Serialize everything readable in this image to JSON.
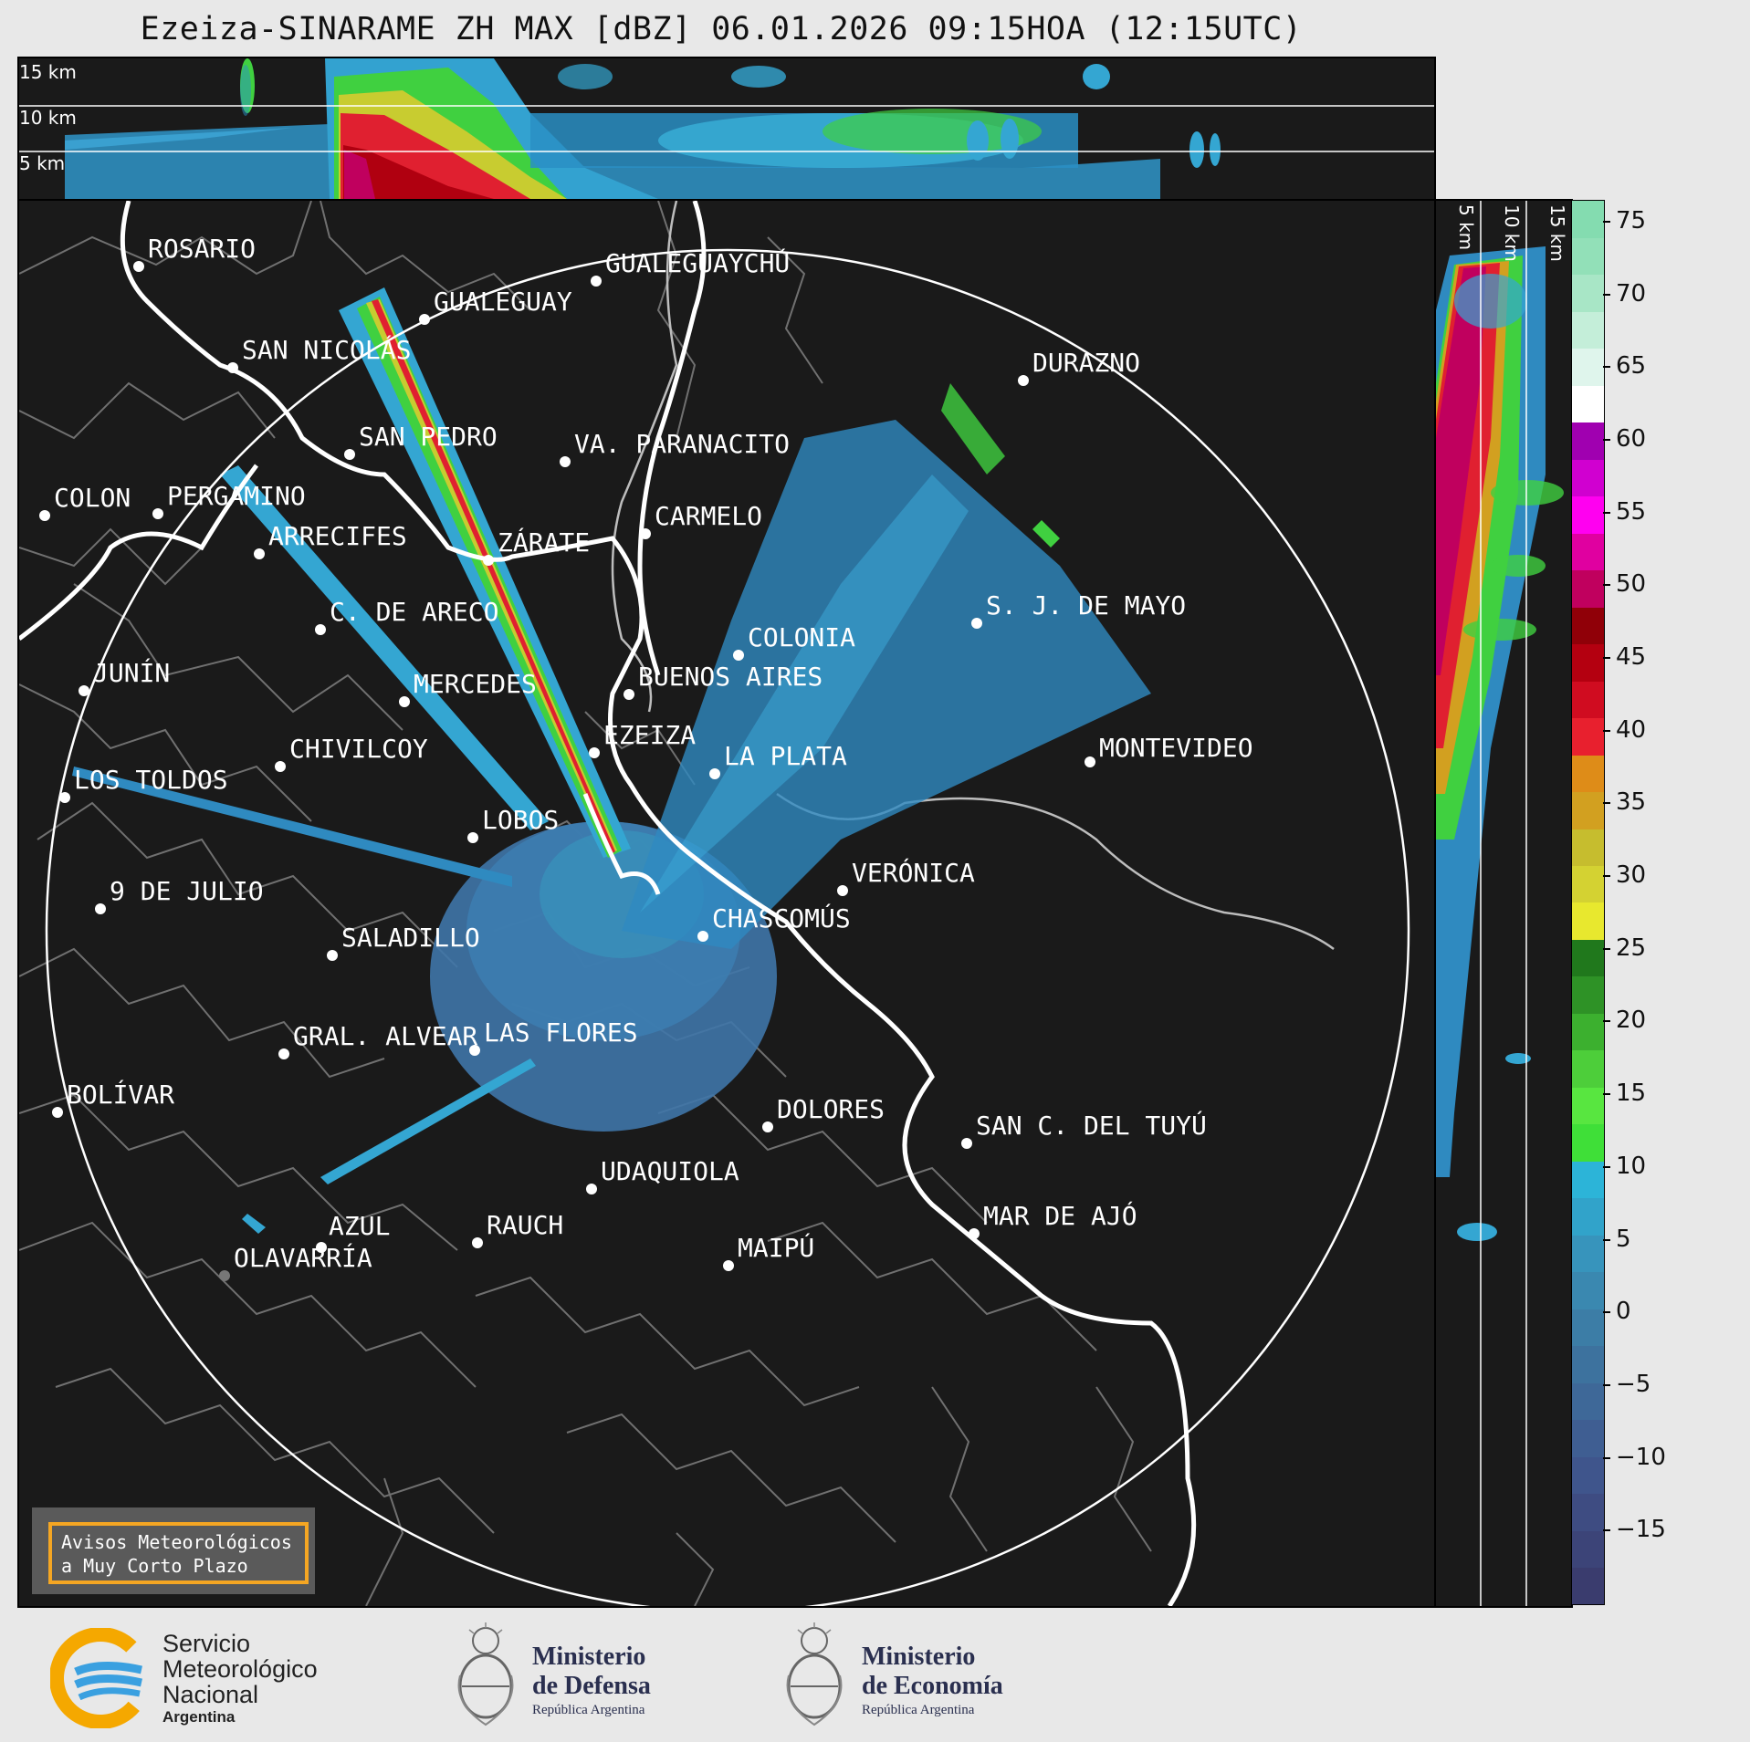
{
  "title": "Ezeiza-SINARAME ZH MAX [dBZ] 06.01.2026 09:15HOA (12:15UTC)",
  "top_panel": {
    "km_labels": [
      "15 km",
      "10 km",
      "5 km"
    ]
  },
  "right_panel": {
    "km_labels": [
      "5 km",
      "10 km",
      "15 km"
    ]
  },
  "cities": [
    {
      "name": "ROSARIO"
    },
    {
      "name": "GUALEGUAYCHÚ"
    },
    {
      "name": "GUALEGUAY"
    },
    {
      "name": "SAN NICOLÁS"
    },
    {
      "name": "DURAZNO"
    },
    {
      "name": "SAN PEDRO"
    },
    {
      "name": "VA. PARANACITO"
    },
    {
      "name": "COLON"
    },
    {
      "name": "PERGAMINO"
    },
    {
      "name": "CARMELO"
    },
    {
      "name": "ARRECIFES"
    },
    {
      "name": "ZÁRATE"
    },
    {
      "name": "S. J. DE MAYO"
    },
    {
      "name": "C. DE ARECO"
    },
    {
      "name": "COLONIA"
    },
    {
      "name": "JUNÍN"
    },
    {
      "name": "BUENOS AIRES"
    },
    {
      "name": "MERCEDES"
    },
    {
      "name": "EZEIZA"
    },
    {
      "name": "MONTEVIDEO"
    },
    {
      "name": "CHIVILCOY"
    },
    {
      "name": "LA PLATA"
    },
    {
      "name": "LOS TOLDOS"
    },
    {
      "name": "LOBOS"
    },
    {
      "name": "VERÓNICA"
    },
    {
      "name": "9 DE JULIO"
    },
    {
      "name": "CHASCOMÚS"
    },
    {
      "name": "SALADILLO"
    },
    {
      "name": "GRAL. ALVEAR"
    },
    {
      "name": "LAS FLORES"
    },
    {
      "name": "BOLÍVAR"
    },
    {
      "name": "DOLORES"
    },
    {
      "name": "SAN C. DEL TUYÚ"
    },
    {
      "name": "UDAQUIOLA"
    },
    {
      "name": "MAR DE AJÓ"
    },
    {
      "name": "AZUL"
    },
    {
      "name": "RAUCH"
    },
    {
      "name": "MAIPÚ"
    },
    {
      "name": "OLAVARRÍA"
    }
  ],
  "colorbar": {
    "ticks": [
      "75",
      "70",
      "65",
      "60",
      "55",
      "50",
      "45",
      "40",
      "35",
      "30",
      "25",
      "20",
      "15",
      "10",
      "5",
      "0",
      "−5",
      "−10",
      "−15"
    ],
    "min": -20,
    "max": 76.5,
    "colors": [
      "#3a3c6e",
      "#3c4478",
      "#3e4c82",
      "#3f558c",
      "#3f5e92",
      "#3e6898",
      "#3d729e",
      "#3c7da6",
      "#3a88b0",
      "#3794bc",
      "#31a3ca",
      "#2cb4d8",
      "#3fdf38",
      "#58e640",
      "#4dce3a",
      "#3cb02f",
      "#2e9226",
      "#20781c",
      "#e8e82e",
      "#d4d232",
      "#c6bd2e",
      "#d2a020",
      "#de8c18",
      "#e8202e",
      "#d00c20",
      "#b40010",
      "#900008",
      "#c0005e",
      "#e000a0",
      "#ff00f0",
      "#d000d0",
      "#a000b0",
      "#ffffff",
      "#dff5ec",
      "#c4eed9",
      "#a8e6c6",
      "#92e0b8",
      "#84dcb0"
    ]
  },
  "badge": {
    "line1": "Avisos Meteorológicos",
    "line2": "a Muy Corto Plazo"
  },
  "logos": {
    "smn": {
      "line1": "Servicio",
      "line2": "Meteorológico",
      "line3": "Nacional",
      "line4": "Argentina"
    },
    "defensa": {
      "line1": "Ministerio",
      "line2": "de Defensa",
      "line3": "República Argentina"
    },
    "economia": {
      "line1": "Ministerio",
      "line2": "de Economía",
      "line3": "República Argentina"
    }
  }
}
